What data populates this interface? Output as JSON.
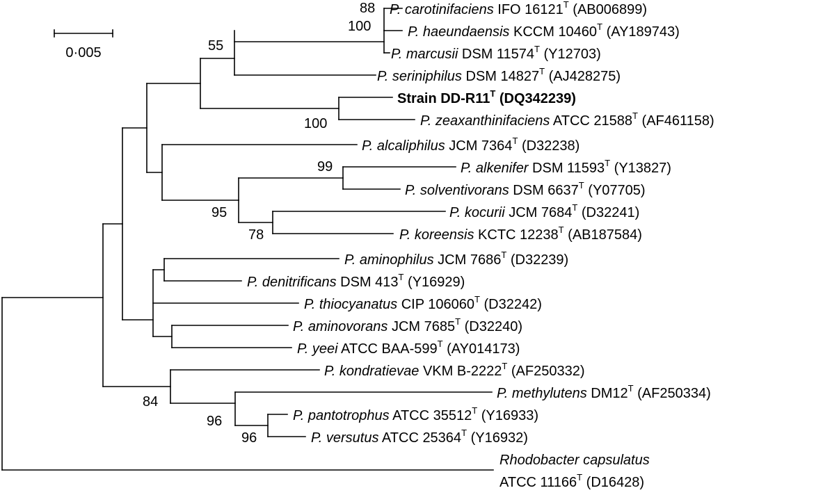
{
  "scale_bar": {
    "label": "0·005"
  },
  "taxa": [
    {
      "genus": "P.",
      "epithet": "carotinifaciens",
      "strain": "IFO 16121",
      "accession": "(AB006899)"
    },
    {
      "genus": "P.",
      "epithet": "haeundaensis",
      "strain": "KCCM 10460",
      "accession": "(AY189743)"
    },
    {
      "genus": "P.",
      "epithet": "marcusii",
      "strain": "DSM 11574",
      "accession": "(Y12703)"
    },
    {
      "genus": "P.",
      "epithet": "seriniphilus",
      "strain": "DSM 14827",
      "accession": "(AJ428275)"
    },
    {
      "bold": true,
      "strain": "Strain DD-R11",
      "accession": "(DQ342239)"
    },
    {
      "genus": "P.",
      "epithet": "zeaxanthinifaciens",
      "strain": "ATCC 21588",
      "accession": "(AF461158)"
    },
    {
      "genus": "P.",
      "epithet": "alcaliphilus",
      "strain": "JCM 7364",
      "accession": "(D32238)"
    },
    {
      "genus": "P.",
      "epithet": "alkenifer",
      "strain": "DSM 11593",
      "accession": "(Y13827)"
    },
    {
      "genus": "P.",
      "epithet": "solventivorans",
      "strain": "DSM 6637",
      "accession": "(Y07705)"
    },
    {
      "genus": "P.",
      "epithet": "kocurii",
      "strain": "JCM 7684",
      "accession": "(D32241)"
    },
    {
      "genus": "P.",
      "epithet": "koreensis",
      "strain": "KCTC 12238",
      "accession": "(AB187584)"
    },
    {
      "genus": "P.",
      "epithet": "aminophilus",
      "strain": "JCM 7686",
      "accession": "(D32239)"
    },
    {
      "genus": "P.",
      "epithet": "denitrificans",
      "strain": "DSM 413",
      "accession": "(Y16929)"
    },
    {
      "genus": "P.",
      "epithet": "thiocyanatus",
      "strain": "CIP 106060",
      "accession": "(D32242)"
    },
    {
      "genus": "P.",
      "epithet": "aminovorans",
      "strain": "JCM 7685",
      "accession": "(D32240)"
    },
    {
      "genus": "P.",
      "epithet": "yeei",
      "strain": "ATCC BAA-599",
      "accession": "(AY014173)"
    },
    {
      "genus": "P.",
      "epithet": "kondratievae",
      "strain": "VKM B-2222",
      "accession": "(AF250332)"
    },
    {
      "genus": "P.",
      "epithet": "methylutens",
      "strain": "DM12",
      "accession": "(AF250334)"
    },
    {
      "genus": "P.",
      "epithet": "pantotrophus",
      "strain": "ATCC 35512",
      "accession": "(Y16933)"
    },
    {
      "genus": "P.",
      "epithet": "versutus",
      "strain": "ATCC 25364",
      "accession": "(Y16932)"
    },
    {
      "outgroup": true,
      "name": "Rhodobacter capsulatus",
      "strain": "ATCC 11166",
      "accession": "(D16428)"
    }
  ],
  "type_strain_mark": "T",
  "bootstrap": [
    "88",
    "100",
    "55",
    "100",
    "99",
    "95",
    "78",
    "84",
    "96",
    "96"
  ]
}
